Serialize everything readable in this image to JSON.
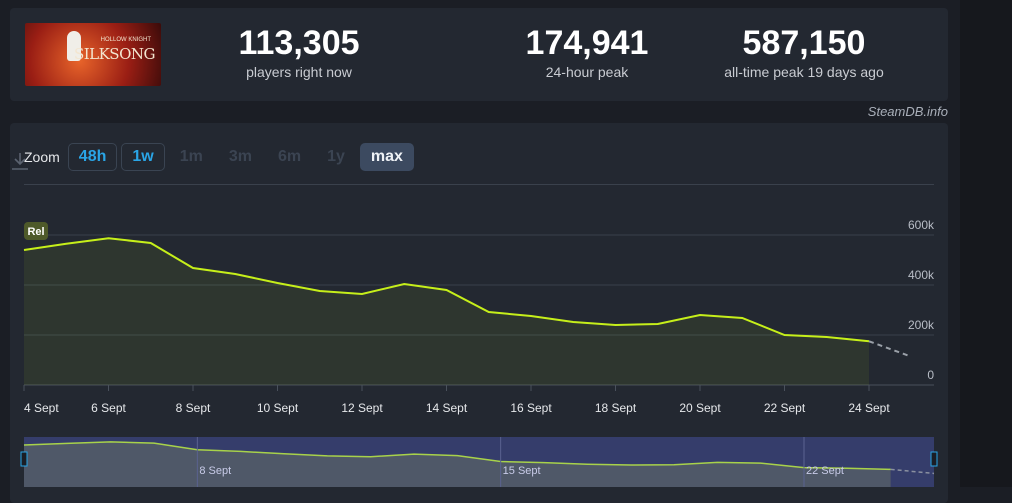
{
  "game": {
    "logo_text": "SILKSONG",
    "logo_subtext": "HOLLOW KNIGHT"
  },
  "stats": [
    {
      "value": "113,305",
      "label": "players right now"
    },
    {
      "value": "174,941",
      "label": "24-hour peak"
    },
    {
      "value": "587,150",
      "label": "all-time peak 19 days ago"
    }
  ],
  "credit": "SteamDB.info",
  "zoom": {
    "label": "Zoom",
    "options": [
      {
        "label": "48h",
        "state": "enabled"
      },
      {
        "label": "1w",
        "state": "enabled"
      },
      {
        "label": "1m",
        "state": "disabled"
      },
      {
        "label": "3m",
        "state": "disabled"
      },
      {
        "label": "6m",
        "state": "disabled"
      },
      {
        "label": "1y",
        "state": "disabled"
      },
      {
        "label": "max",
        "state": "selected"
      }
    ]
  },
  "icons": {
    "download": "download-icon"
  },
  "colors": {
    "line": "#c6ef1a",
    "accent": "#2aa5e6",
    "navigator_bg": "#353d6b"
  },
  "chart_data": {
    "type": "line",
    "badge": "Rel",
    "x": [
      "4 Sept",
      "5 Sept",
      "6 Sept",
      "7 Sept",
      "8 Sept",
      "9 Sept",
      "10 Sept",
      "11 Sept",
      "12 Sept",
      "13 Sept",
      "14 Sept",
      "15 Sept",
      "16 Sept",
      "17 Sept",
      "18 Sept",
      "19 Sept",
      "20 Sept",
      "21 Sept",
      "22 Sept",
      "23 Sept",
      "24 Sept"
    ],
    "values": [
      540000,
      565000,
      587150,
      568000,
      468000,
      444000,
      408000,
      376000,
      364000,
      404000,
      380000,
      292000,
      276000,
      252000,
      240000,
      244000,
      280000,
      268000,
      200000,
      192000,
      174941
    ],
    "projected": {
      "x": "25 Sept",
      "value": 113305
    },
    "x_ticks": [
      "4 Sept",
      "6 Sept",
      "8 Sept",
      "10 Sept",
      "12 Sept",
      "14 Sept",
      "16 Sept",
      "18 Sept",
      "20 Sept",
      "22 Sept",
      "24 Sept"
    ],
    "y_ticks": [
      "0",
      "200k",
      "400k",
      "600k"
    ],
    "ylim": [
      0,
      600000
    ],
    "grid": true,
    "navigator_labels": [
      "8 Sept",
      "15 Sept",
      "22 Sept"
    ]
  }
}
